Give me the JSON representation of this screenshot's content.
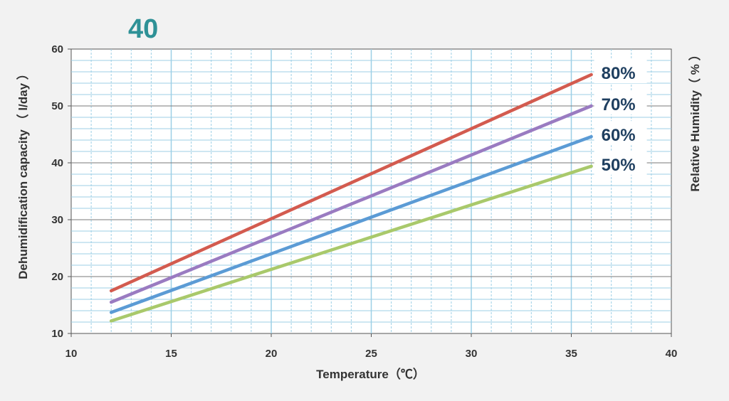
{
  "chart_data": {
    "type": "line",
    "title": "40",
    "xlabel": "Temperature（℃）",
    "ylabel": "Dehumidification capacity （ l/day ）",
    "y2label": "Relative Humidity（ % ）",
    "xlim": [
      10,
      40
    ],
    "ylim": [
      10,
      60
    ],
    "xticks": [
      10,
      15,
      20,
      25,
      30,
      35,
      40
    ],
    "yticks": [
      10,
      20,
      30,
      40,
      50,
      60
    ],
    "grid": true,
    "legend": "right-inline",
    "series": [
      {
        "name": "80%",
        "color": "#d35b4f",
        "x": [
          12,
          36
        ],
        "y": [
          17.5,
          55.5
        ]
      },
      {
        "name": "70%",
        "color": "#9a7bc1",
        "x": [
          12,
          36
        ],
        "y": [
          15.5,
          50.0
        ]
      },
      {
        "name": "60%",
        "color": "#5b9bd5",
        "x": [
          12,
          36
        ],
        "y": [
          13.7,
          44.6
        ]
      },
      {
        "name": "50%",
        "color": "#a9c96b",
        "x": [
          12,
          36
        ],
        "y": [
          12.2,
          39.4
        ]
      }
    ]
  },
  "colors": {
    "title": "#2e9196",
    "series_label": "#1f3f60",
    "background": "#f2f2f2",
    "plot_background": "#ffffff",
    "major_grid": "#7a7a7a",
    "minor_grid": "#9ccfe6"
  }
}
